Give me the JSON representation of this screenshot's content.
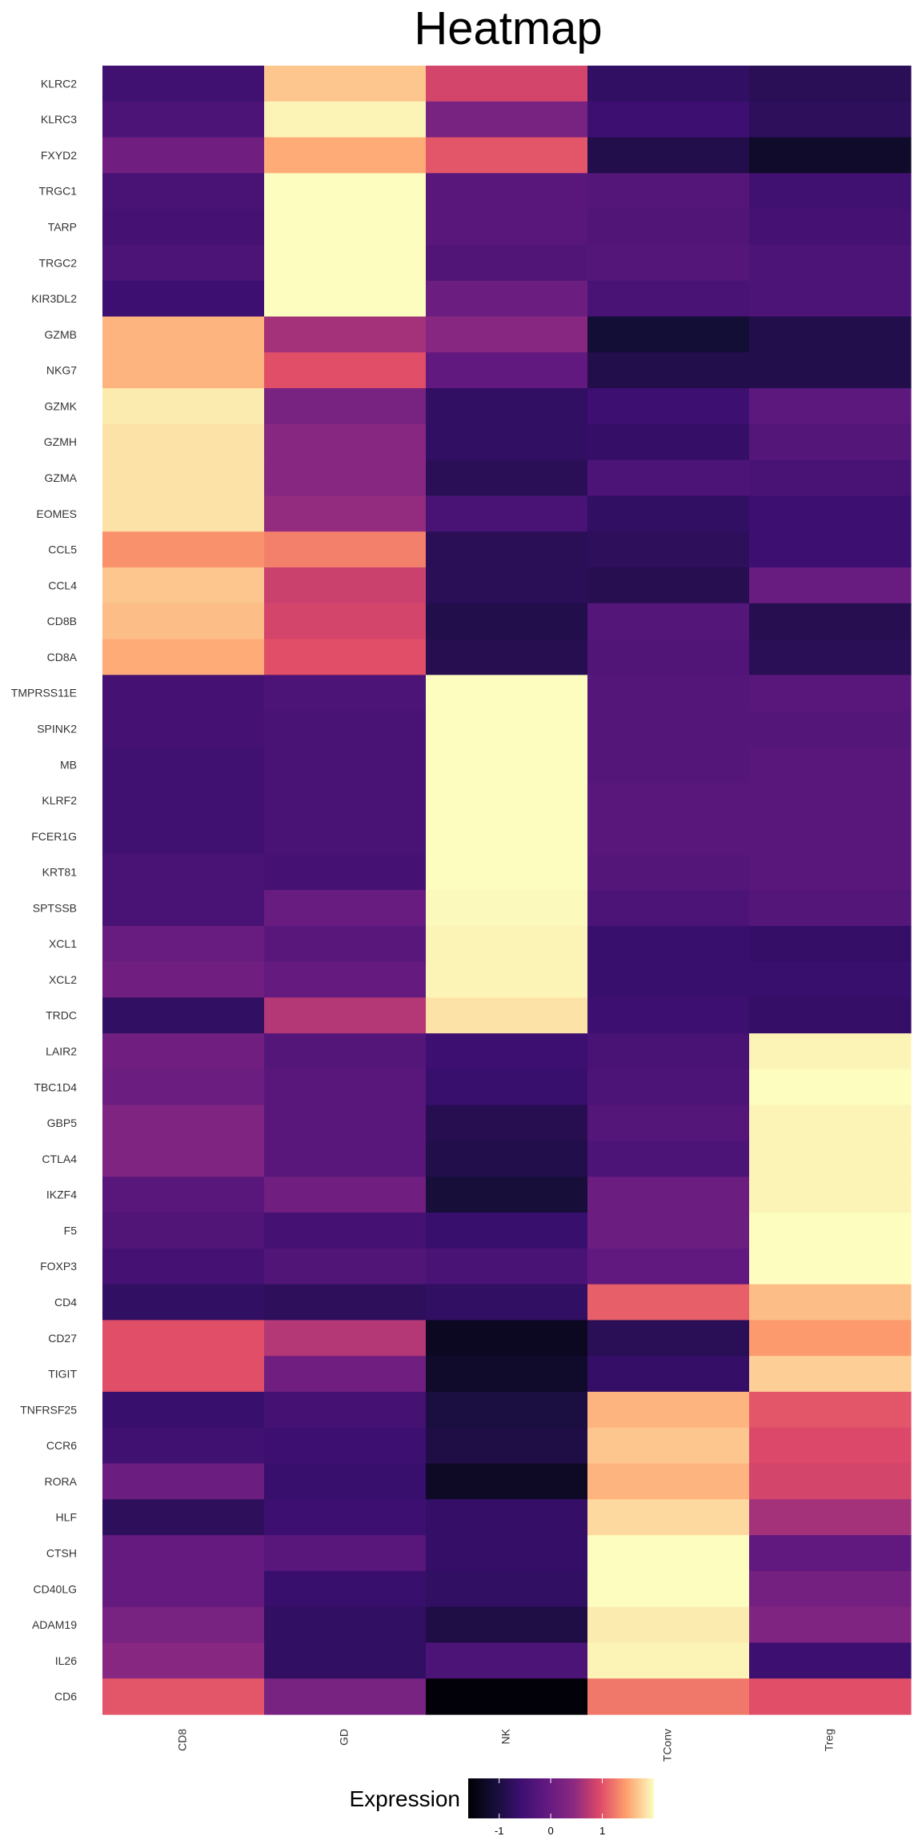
{
  "chart_data": {
    "type": "heatmap",
    "title": "Heatmap",
    "xlabel": "",
    "ylabel": "",
    "columns": [
      "CD8",
      "GD",
      "NK",
      "TConv",
      "Treg"
    ],
    "rows": [
      "KLRC2",
      "KLRC3",
      "FXYD2",
      "TRGC1",
      "TARP",
      "TRGC2",
      "KIR3DL2",
      "GZMB",
      "NKG7",
      "GZMK",
      "GZMH",
      "GZMA",
      "EOMES",
      "CCL5",
      "CCL4",
      "CD8B",
      "CD8A",
      "TMPRSS11E",
      "SPINK2",
      "MB",
      "KLRF2",
      "FCER1G",
      "KRT81",
      "SPTSSB",
      "XCL1",
      "XCL2",
      "TRDC",
      "LAIR2",
      "TBC1D4",
      "GBP5",
      "CTLA4",
      "IKZF4",
      "F5",
      "FOXP3",
      "CD4",
      "CD27",
      "TIGIT",
      "TNFRSF25",
      "CCR6",
      "RORA",
      "HLF",
      "CTSH",
      "CD40LG",
      "ADAM19",
      "IL26",
      "CD6"
    ],
    "values": [
      [
        -0.5,
        1.7,
        0.9,
        -0.7,
        -0.8
      ],
      [
        -0.35,
        1.95,
        0.2,
        -0.55,
        -0.75
      ],
      [
        0.1,
        1.55,
        1.05,
        -0.9,
        -1.2
      ],
      [
        -0.4,
        2.0,
        -0.2,
        -0.25,
        -0.5
      ],
      [
        -0.45,
        2.0,
        -0.2,
        -0.3,
        -0.45
      ],
      [
        -0.35,
        2.0,
        -0.3,
        -0.25,
        -0.35
      ],
      [
        -0.55,
        2.0,
        0.05,
        -0.4,
        -0.35
      ],
      [
        1.6,
        0.6,
        0.4,
        -1.1,
        -0.9
      ],
      [
        1.6,
        1.0,
        -0.1,
        -0.9,
        -0.9
      ],
      [
        1.9,
        0.2,
        -0.7,
        -0.55,
        -0.15
      ],
      [
        1.85,
        0.4,
        -0.7,
        -0.65,
        -0.25
      ],
      [
        1.85,
        0.4,
        -0.8,
        -0.35,
        -0.4
      ],
      [
        1.85,
        0.5,
        -0.4,
        -0.7,
        -0.55
      ],
      [
        1.4,
        1.3,
        -0.8,
        -0.75,
        -0.55
      ],
      [
        1.7,
        0.85,
        -0.8,
        -0.85,
        0.0
      ],
      [
        1.65,
        0.9,
        -0.9,
        -0.25,
        -0.85
      ],
      [
        1.55,
        1.0,
        -0.85,
        -0.3,
        -0.8
      ],
      [
        -0.45,
        -0.35,
        2.0,
        -0.25,
        -0.2
      ],
      [
        -0.45,
        -0.4,
        2.0,
        -0.25,
        -0.25
      ],
      [
        -0.5,
        -0.4,
        2.0,
        -0.25,
        -0.2
      ],
      [
        -0.5,
        -0.4,
        2.0,
        -0.2,
        -0.2
      ],
      [
        -0.5,
        -0.4,
        2.0,
        -0.2,
        -0.2
      ],
      [
        -0.4,
        -0.45,
        2.0,
        -0.25,
        -0.2
      ],
      [
        -0.4,
        0.0,
        1.98,
        -0.35,
        -0.25
      ],
      [
        0.0,
        -0.2,
        1.95,
        -0.6,
        -0.65
      ],
      [
        0.1,
        -0.05,
        1.95,
        -0.6,
        -0.6
      ],
      [
        -0.7,
        0.7,
        1.85,
        -0.55,
        -0.65
      ],
      [
        0.1,
        -0.25,
        -0.55,
        -0.4,
        1.95
      ],
      [
        0.05,
        -0.2,
        -0.6,
        -0.35,
        2.0
      ],
      [
        0.3,
        -0.2,
        -0.85,
        -0.25,
        1.95
      ],
      [
        0.3,
        -0.2,
        -0.9,
        -0.35,
        1.95
      ],
      [
        -0.2,
        0.1,
        -1.05,
        0.05,
        1.95
      ],
      [
        -0.3,
        -0.45,
        -0.6,
        0.05,
        2.0
      ],
      [
        -0.45,
        -0.3,
        -0.4,
        -0.1,
        2.0
      ],
      [
        -0.7,
        -0.75,
        -0.7,
        1.1,
        1.65
      ],
      [
        1.0,
        0.7,
        -1.3,
        -0.8,
        1.45
      ],
      [
        1.0,
        0.1,
        -1.2,
        -0.65,
        1.75
      ],
      [
        -0.6,
        -0.45,
        -1.0,
        1.6,
        1.05
      ],
      [
        -0.5,
        -0.55,
        -0.95,
        1.7,
        0.95
      ],
      [
        0.05,
        -0.6,
        -1.25,
        1.6,
        0.9
      ],
      [
        -0.75,
        -0.55,
        -0.65,
        1.8,
        0.6
      ],
      [
        -0.05,
        -0.2,
        -0.65,
        2.0,
        -0.1
      ],
      [
        -0.05,
        -0.6,
        -0.7,
        2.0,
        0.15
      ],
      [
        0.2,
        -0.7,
        -0.95,
        1.9,
        0.3
      ],
      [
        0.4,
        -0.7,
        -0.35,
        1.95,
        -0.55
      ],
      [
        1.05,
        0.2,
        -1.55,
        1.25,
        1.0
      ]
    ],
    "colorscale": "magma",
    "zlim": [
      -1.6,
      2.0
    ],
    "legend": {
      "title": "Expression",
      "ticks": [
        -1,
        0,
        1
      ],
      "placement": "bottom"
    }
  }
}
